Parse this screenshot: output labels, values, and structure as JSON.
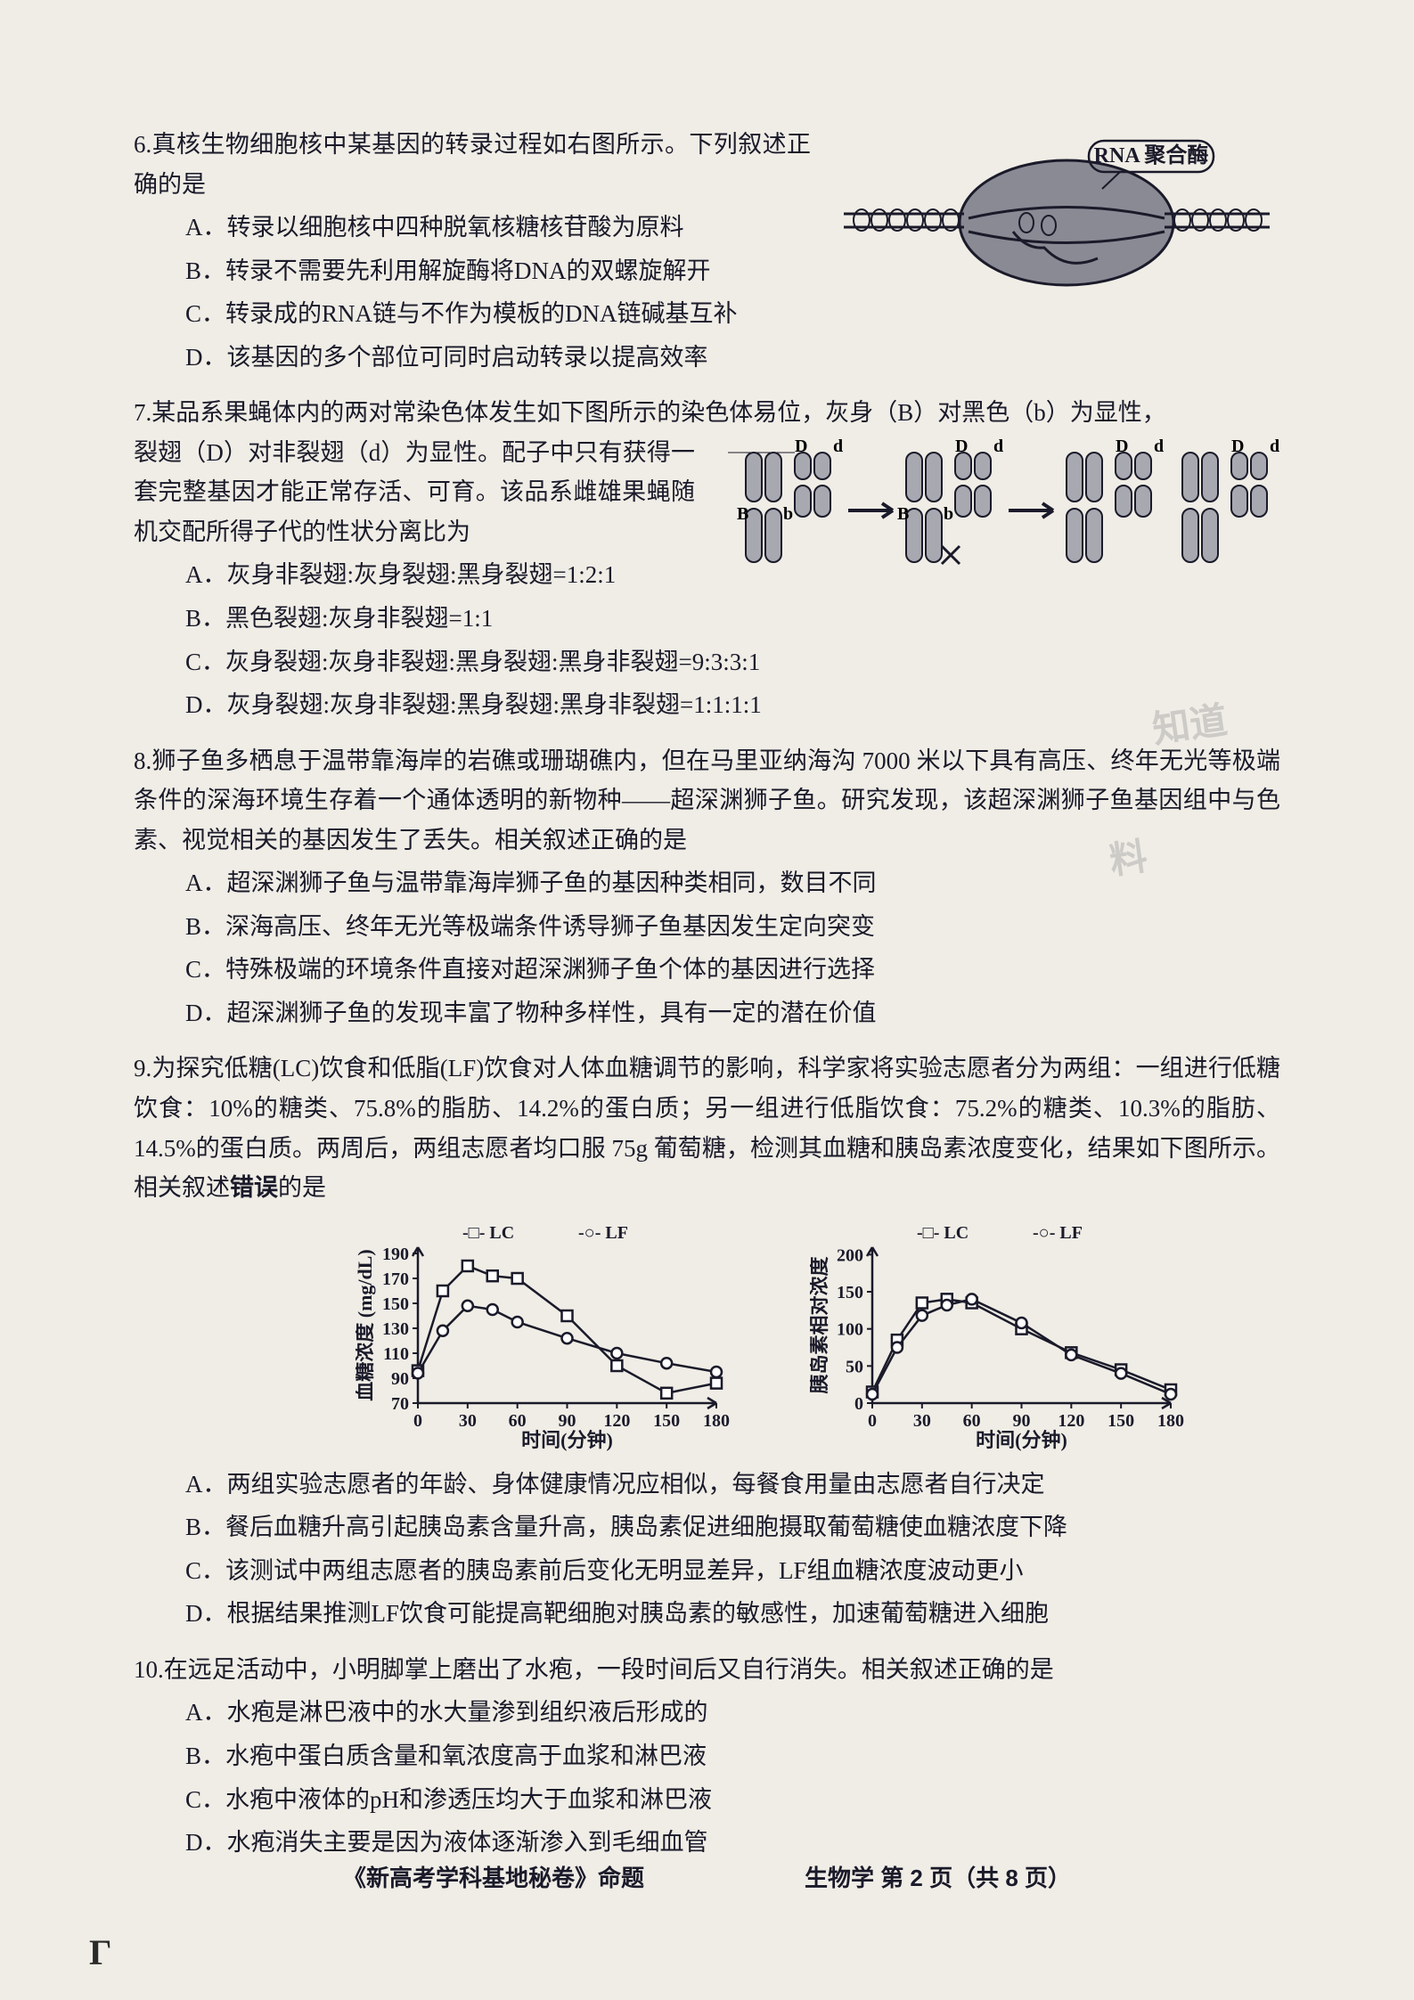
{
  "q6": {
    "stem": "6.真核生物细胞核中某基因的转录过程如右图所示。下列叙述正确的是",
    "A": "A．转录以细胞核中四种脱氧核糖核苷酸为原料",
    "B": "B．转录不需要先利用解旋酶将DNA的双螺旋解开",
    "C": "C．转录成的RNA链与不作为模板的DNA链碱基互补",
    "D": "D．该基因的多个部位可同时启动转录以提高效率",
    "fig": {
      "label": "RNA 聚合酶",
      "bubble_fill": "#8a8a94",
      "bubble_stroke": "#222233",
      "strand_color": "#111122"
    }
  },
  "q7": {
    "stem1": "7.某品系果蝇体内的两对常染色体发生如下图所示的染色体易位，灰身（B）对黑色（b）为显性，",
    "stem2": "裂翅（D）对非裂翅（d）为显性。配子中只有获得一套完整基因才能正常存活、可育。该品系雌雄果蝇随机交配所得子代的性状分离比为",
    "A": "A．灰身非裂翅:灰身裂翅:黑身裂翅=1:2:1",
    "B": "B．黑色裂翅:灰身非裂翅=1:1",
    "C": "C．灰身裂翅:灰身非裂翅:黑身裂翅:黑身非裂翅=9:3:3:1",
    "D": "D．灰身裂翅:灰身非裂翅:黑身裂翅:黑身非裂翅=1:1:1:1",
    "fig": {
      "chrom_fill": "#a8a8b0",
      "chrom_stroke": "#1a1a2a",
      "labels": [
        "B",
        "b",
        "D",
        "d"
      ],
      "arrow_color": "#1a1a2a",
      "cross_mark": "×"
    }
  },
  "q8": {
    "stem": "8.狮子鱼多栖息于温带靠海岸的岩礁或珊瑚礁内，但在马里亚纳海沟 7000 米以下具有高压、终年无光等极端条件的深海环境生存着一个通体透明的新物种——超深渊狮子鱼。研究发现，该超深渊狮子鱼基因组中与色素、视觉相关的基因发生了丢失。相关叙述正确的是",
    "A": "A．超深渊狮子鱼与温带靠海岸狮子鱼的基因种类相同，数目不同",
    "B": "B．深海高压、终年无光等极端条件诱导狮子鱼基因发生定向突变",
    "C": "C．特殊极端的环境条件直接对超深渊狮子鱼个体的基因进行选择",
    "D": "D．超深渊狮子鱼的发现丰富了物种多样性，具有一定的潜在价值"
  },
  "q9": {
    "stem": "9.为探究低糖(LC)饮食和低脂(LF)饮食对人体血糖调节的影响，科学家将实验志愿者分为两组：一组进行低糖饮食：10%的糖类、75.8%的脂肪、14.2%的蛋白质；另一组进行低脂饮食：75.2%的糖类、10.3%的脂肪、14.5%的蛋白质。两周后，两组志愿者均口服 75g 葡萄糖，检测其血糖和胰岛素浓度变化，结果如下图所示。相关叙述",
    "stem_emph": "错误",
    "stem_tail": "的是",
    "A": "A．两组实验志愿者的年龄、身体健康情况应相似，每餐食用量由志愿者自行决定",
    "B": "B．餐后血糖升高引起胰岛素含量升高，胰岛素促进细胞摄取葡萄糖使血糖浓度下降",
    "C": "C．该测试中两组志愿者的胰岛素前后变化无明显差异，LF组血糖浓度波动更小",
    "D": "D．根据结果推测LF饮食可能提高靶细胞对胰岛素的敏感性，加速葡萄糖进入细胞",
    "chart1": {
      "type": "line",
      "legend": [
        "LC",
        "LF"
      ],
      "legend_markers": [
        "-□-",
        "-○-"
      ],
      "xlabel": "时间(分钟)",
      "ylabel": "血糖浓度 (mg/dL)",
      "xticks": [
        0,
        30,
        60,
        90,
        120,
        150,
        180
      ],
      "yticks": [
        70,
        90,
        110,
        130,
        150,
        170,
        190
      ],
      "xlim": [
        0,
        180
      ],
      "ylim": [
        70,
        195
      ],
      "series": {
        "LC": {
          "x": [
            0,
            15,
            30,
            45,
            60,
            90,
            120,
            150,
            180
          ],
          "y": [
            96,
            160,
            180,
            172,
            170,
            140,
            100,
            78,
            86
          ],
          "marker": "square"
        },
        "LF": {
          "x": [
            0,
            15,
            30,
            45,
            60,
            90,
            120,
            150,
            180
          ],
          "y": [
            94,
            128,
            148,
            145,
            135,
            122,
            110,
            102,
            95
          ],
          "marker": "circle"
        }
      },
      "line_color": "#1a1a2a",
      "marker_fill": "#ffffff",
      "axis_color": "#1a1a2a",
      "fontsize": 20
    },
    "chart2": {
      "type": "line",
      "legend": [
        "LC",
        "LF"
      ],
      "legend_markers": [
        "-□-",
        "-○-"
      ],
      "xlabel": "时间(分钟)",
      "ylabel": "胰岛素相对浓度",
      "xticks": [
        0,
        30,
        60,
        90,
        120,
        150,
        180
      ],
      "yticks": [
        0,
        50,
        100,
        150,
        200
      ],
      "xlim": [
        0,
        180
      ],
      "ylim": [
        0,
        210
      ],
      "series": {
        "LC": {
          "x": [
            0,
            15,
            30,
            45,
            60,
            90,
            120,
            150,
            180
          ],
          "y": [
            15,
            85,
            135,
            140,
            135,
            100,
            68,
            45,
            18
          ],
          "marker": "square"
        },
        "LF": {
          "x": [
            0,
            15,
            30,
            45,
            60,
            90,
            120,
            150,
            180
          ],
          "y": [
            12,
            75,
            118,
            132,
            140,
            108,
            65,
            40,
            12
          ],
          "marker": "circle"
        }
      },
      "line_color": "#1a1a2a",
      "marker_fill": "#ffffff",
      "axis_color": "#1a1a2a",
      "fontsize": 20
    }
  },
  "q10": {
    "stem": "10.在远足活动中，小明脚掌上磨出了水疱，一段时间后又自行消失。相关叙述正确的是",
    "A": "A．水疱是淋巴液中的水大量渗到组织液后形成的",
    "B": "B．水疱中蛋白质含量和氧浓度高于血浆和淋巴液",
    "C": "C．水疱中液体的pH和渗透压均大于血浆和淋巴液",
    "D": "D．水疱消失主要是因为液体逐渐渗入到毛细血管"
  },
  "watermarks": {
    "w1": "知道",
    "w2": "料"
  },
  "footer": {
    "left": "《新高考学科基地秘卷》命题",
    "right": "生物学 第 2 页（共 8 页）"
  }
}
